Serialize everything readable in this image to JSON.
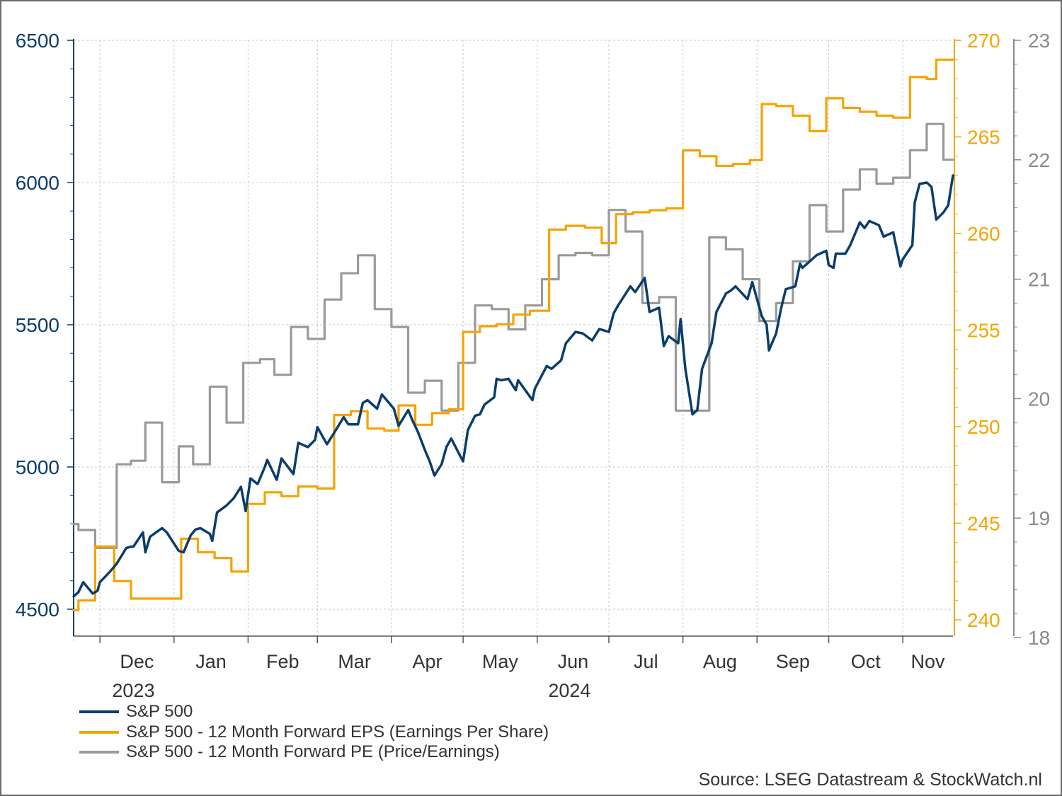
{
  "chart_data": {
    "type": "line",
    "title": "",
    "source": "Source: LSEG Datastream & StockWatch.nl",
    "x_range": [
      "2023-11-20",
      "2024-11-22"
    ],
    "x_month_labels": [
      "Dec",
      "Jan",
      "Feb",
      "Mar",
      "Apr",
      "May",
      "Jun",
      "Jul",
      "Aug",
      "Sep",
      "Oct",
      "Nov"
    ],
    "x_year_labels": [
      {
        "label": "2023",
        "month": "Dec"
      },
      {
        "label": "2024",
        "month": "Jun"
      }
    ],
    "axes": {
      "left": {
        "min": 4400,
        "max": 6500,
        "ticks": [
          4500,
          5000,
          5500,
          6000,
          6500
        ],
        "color": "#0b3d6b"
      },
      "right_eps": {
        "min": 239,
        "max": 270,
        "ticks": [
          240,
          245,
          250,
          255,
          260,
          265,
          270
        ],
        "color": "#f5a300"
      },
      "right_pe": {
        "min": 18,
        "max": 23,
        "ticks": [
          18,
          19,
          20,
          21,
          22,
          23
        ],
        "color": "#8a8a8a"
      }
    },
    "grid": true,
    "legend_position": "bottom-left",
    "series": [
      {
        "name": "S&P 500",
        "axis": "left",
        "color": "#0b3d6b",
        "points": [
          [
            "2023-11-20",
            4545
          ],
          [
            "2023-11-22",
            4560
          ],
          [
            "2023-11-24",
            4595
          ],
          [
            "2023-11-28",
            4555
          ],
          [
            "2023-11-30",
            4565
          ],
          [
            "2023-12-01",
            4595
          ],
          [
            "2023-12-05",
            4630
          ],
          [
            "2023-12-08",
            4660
          ],
          [
            "2023-12-12",
            4715
          ],
          [
            "2023-12-14",
            4720
          ],
          [
            "2023-12-15",
            4720
          ],
          [
            "2023-12-19",
            4770
          ],
          [
            "2023-12-20",
            4700
          ],
          [
            "2023-12-22",
            4755
          ],
          [
            "2023-12-27",
            4785
          ],
          [
            "2023-12-29",
            4770
          ],
          [
            "2024-01-03",
            4705
          ],
          [
            "2024-01-05",
            4700
          ],
          [
            "2024-01-08",
            4760
          ],
          [
            "2024-01-10",
            4780
          ],
          [
            "2024-01-12",
            4785
          ],
          [
            "2024-01-16",
            4765
          ],
          [
            "2024-01-17",
            4740
          ],
          [
            "2024-01-19",
            4840
          ],
          [
            "2024-01-23",
            4865
          ],
          [
            "2024-01-26",
            4890
          ],
          [
            "2024-01-29",
            4930
          ],
          [
            "2024-01-31",
            4845
          ],
          [
            "2024-02-02",
            4960
          ],
          [
            "2024-02-05",
            4940
          ],
          [
            "2024-02-08",
            5000
          ],
          [
            "2024-02-09",
            5025
          ],
          [
            "2024-02-13",
            4955
          ],
          [
            "2024-02-15",
            5030
          ],
          [
            "2024-02-20",
            4975
          ],
          [
            "2024-02-22",
            5085
          ],
          [
            "2024-02-26",
            5070
          ],
          [
            "2024-02-29",
            5095
          ],
          [
            "2024-03-01",
            5140
          ],
          [
            "2024-03-05",
            5080
          ],
          [
            "2024-03-08",
            5120
          ],
          [
            "2024-03-12",
            5175
          ],
          [
            "2024-03-14",
            5150
          ],
          [
            "2024-03-18",
            5150
          ],
          [
            "2024-03-20",
            5225
          ],
          [
            "2024-03-22",
            5235
          ],
          [
            "2024-03-26",
            5205
          ],
          [
            "2024-03-28",
            5255
          ],
          [
            "2024-04-02",
            5205
          ],
          [
            "2024-04-04",
            5145
          ],
          [
            "2024-04-08",
            5200
          ],
          [
            "2024-04-10",
            5160
          ],
          [
            "2024-04-12",
            5125
          ],
          [
            "2024-04-15",
            5060
          ],
          [
            "2024-04-17",
            5020
          ],
          [
            "2024-04-19",
            4970
          ],
          [
            "2024-04-22",
            5010
          ],
          [
            "2024-04-24",
            5070
          ],
          [
            "2024-04-26",
            5100
          ],
          [
            "2024-04-30",
            5035
          ],
          [
            "2024-05-01",
            5020
          ],
          [
            "2024-05-03",
            5130
          ],
          [
            "2024-05-06",
            5180
          ],
          [
            "2024-05-08",
            5185
          ],
          [
            "2024-05-10",
            5220
          ],
          [
            "2024-05-14",
            5245
          ],
          [
            "2024-05-15",
            5310
          ],
          [
            "2024-05-17",
            5305
          ],
          [
            "2024-05-20",
            5310
          ],
          [
            "2024-05-23",
            5270
          ],
          [
            "2024-05-24",
            5305
          ],
          [
            "2024-05-30",
            5235
          ],
          [
            "2024-05-31",
            5275
          ],
          [
            "2024-06-05",
            5355
          ],
          [
            "2024-06-07",
            5345
          ],
          [
            "2024-06-11",
            5375
          ],
          [
            "2024-06-13",
            5435
          ],
          [
            "2024-06-17",
            5475
          ],
          [
            "2024-06-20",
            5470
          ],
          [
            "2024-06-24",
            5445
          ],
          [
            "2024-06-27",
            5485
          ],
          [
            "2024-07-01",
            5475
          ],
          [
            "2024-07-03",
            5540
          ],
          [
            "2024-07-05",
            5570
          ],
          [
            "2024-07-10",
            5635
          ],
          [
            "2024-07-12",
            5615
          ],
          [
            "2024-07-16",
            5665
          ],
          [
            "2024-07-18",
            5545
          ],
          [
            "2024-07-22",
            5560
          ],
          [
            "2024-07-24",
            5425
          ],
          [
            "2024-07-26",
            5460
          ],
          [
            "2024-07-30",
            5435
          ],
          [
            "2024-07-31",
            5520
          ],
          [
            "2024-08-02",
            5345
          ],
          [
            "2024-08-05",
            5185
          ],
          [
            "2024-08-07",
            5200
          ],
          [
            "2024-08-09",
            5345
          ],
          [
            "2024-08-13",
            5435
          ],
          [
            "2024-08-15",
            5545
          ],
          [
            "2024-08-19",
            5610
          ],
          [
            "2024-08-21",
            5620
          ],
          [
            "2024-08-23",
            5635
          ],
          [
            "2024-08-28",
            5590
          ],
          [
            "2024-08-30",
            5650
          ],
          [
            "2024-09-03",
            5530
          ],
          [
            "2024-09-05",
            5500
          ],
          [
            "2024-09-06",
            5410
          ],
          [
            "2024-09-09",
            5470
          ],
          [
            "2024-09-11",
            5555
          ],
          [
            "2024-09-13",
            5625
          ],
          [
            "2024-09-17",
            5635
          ],
          [
            "2024-09-19",
            5715
          ],
          [
            "2024-09-20",
            5700
          ],
          [
            "2024-09-24",
            5730
          ],
          [
            "2024-09-26",
            5745
          ],
          [
            "2024-09-30",
            5760
          ],
          [
            "2024-10-01",
            5710
          ],
          [
            "2024-10-03",
            5700
          ],
          [
            "2024-10-04",
            5750
          ],
          [
            "2024-10-08",
            5750
          ],
          [
            "2024-10-10",
            5780
          ],
          [
            "2024-10-14",
            5860
          ],
          [
            "2024-10-16",
            5840
          ],
          [
            "2024-10-18",
            5865
          ],
          [
            "2024-10-22",
            5850
          ],
          [
            "2024-10-24",
            5810
          ],
          [
            "2024-10-28",
            5825
          ],
          [
            "2024-10-31",
            5705
          ],
          [
            "2024-11-01",
            5730
          ],
          [
            "2024-11-05",
            5780
          ],
          [
            "2024-11-06",
            5930
          ],
          [
            "2024-11-08",
            5995
          ],
          [
            "2024-11-11",
            6000
          ],
          [
            "2024-11-13",
            5985
          ],
          [
            "2024-11-15",
            5870
          ],
          [
            "2024-11-18",
            5895
          ],
          [
            "2024-11-20",
            5920
          ],
          [
            "2024-11-22",
            6025
          ]
        ]
      },
      {
        "name": "S&P 500 - 12 Month Forward EPS (Earnings Per Share)",
        "axis": "right_eps",
        "color": "#f5a300",
        "step": true,
        "points": [
          [
            "2023-11-20",
            240.5
          ],
          [
            "2023-11-22",
            241.0
          ],
          [
            "2023-11-29",
            243.8
          ],
          [
            "2023-12-07",
            242.0
          ],
          [
            "2023-12-14",
            241.1
          ],
          [
            "2024-01-04",
            244.2
          ],
          [
            "2024-01-11",
            243.5
          ],
          [
            "2024-01-18",
            243.2
          ],
          [
            "2024-01-25",
            242.5
          ],
          [
            "2024-02-01",
            246.0
          ],
          [
            "2024-02-08",
            246.6
          ],
          [
            "2024-02-15",
            246.4
          ],
          [
            "2024-02-22",
            246.9
          ],
          [
            "2024-03-01",
            246.8
          ],
          [
            "2024-03-08",
            250.6
          ],
          [
            "2024-03-15",
            250.8
          ],
          [
            "2024-03-22",
            249.9
          ],
          [
            "2024-03-29",
            249.8
          ],
          [
            "2024-04-04",
            251.1
          ],
          [
            "2024-04-11",
            250.1
          ],
          [
            "2024-04-18",
            250.7
          ],
          [
            "2024-04-25",
            250.9
          ],
          [
            "2024-05-01",
            254.9
          ],
          [
            "2024-05-08",
            255.2
          ],
          [
            "2024-05-15",
            255.3
          ],
          [
            "2024-05-22",
            255.8
          ],
          [
            "2024-05-29",
            256.0
          ],
          [
            "2024-06-06",
            260.2
          ],
          [
            "2024-06-13",
            260.4
          ],
          [
            "2024-06-21",
            260.3
          ],
          [
            "2024-06-28",
            259.5
          ],
          [
            "2024-07-04",
            261.0
          ],
          [
            "2024-07-11",
            261.1
          ],
          [
            "2024-07-18",
            261.2
          ],
          [
            "2024-07-25",
            261.3
          ],
          [
            "2024-08-01",
            264.3
          ],
          [
            "2024-08-08",
            264.0
          ],
          [
            "2024-08-15",
            263.5
          ],
          [
            "2024-08-22",
            263.6
          ],
          [
            "2024-08-29",
            263.8
          ],
          [
            "2024-09-03",
            266.7
          ],
          [
            "2024-09-09",
            266.6
          ],
          [
            "2024-09-16",
            266.1
          ],
          [
            "2024-09-23",
            265.3
          ],
          [
            "2024-09-30",
            267.0
          ],
          [
            "2024-10-07",
            266.5
          ],
          [
            "2024-10-14",
            266.3
          ],
          [
            "2024-10-21",
            266.1
          ],
          [
            "2024-10-28",
            266.0
          ],
          [
            "2024-11-04",
            268.1
          ],
          [
            "2024-11-11",
            268.0
          ],
          [
            "2024-11-15",
            269.0
          ],
          [
            "2024-11-22",
            269.0
          ]
        ]
      },
      {
        "name": "S&P 500 - 12 Month Forward PE (Price/Earnings)",
        "axis": "right_pe",
        "color": "#9a9a9a",
        "step": true,
        "points": [
          [
            "2023-11-20",
            18.95
          ],
          [
            "2023-11-22",
            18.9
          ],
          [
            "2023-11-29",
            18.75
          ],
          [
            "2023-12-06",
            18.75
          ],
          [
            "2023-12-08",
            19.45
          ],
          [
            "2023-12-14",
            19.48
          ],
          [
            "2023-12-20",
            19.8
          ],
          [
            "2023-12-27",
            19.3
          ],
          [
            "2024-01-03",
            19.6
          ],
          [
            "2024-01-09",
            19.45
          ],
          [
            "2024-01-16",
            20.1
          ],
          [
            "2024-01-23",
            19.8
          ],
          [
            "2024-01-30",
            20.3
          ],
          [
            "2024-02-06",
            20.33
          ],
          [
            "2024-02-12",
            20.2
          ],
          [
            "2024-02-19",
            20.6
          ],
          [
            "2024-02-26",
            20.5
          ],
          [
            "2024-03-04",
            20.83
          ],
          [
            "2024-03-11",
            21.05
          ],
          [
            "2024-03-18",
            21.2
          ],
          [
            "2024-03-25",
            20.75
          ],
          [
            "2024-04-01",
            20.6
          ],
          [
            "2024-04-08",
            20.05
          ],
          [
            "2024-04-15",
            20.15
          ],
          [
            "2024-04-22",
            19.9
          ],
          [
            "2024-04-29",
            20.3
          ],
          [
            "2024-05-06",
            20.78
          ],
          [
            "2024-05-13",
            20.75
          ],
          [
            "2024-05-20",
            20.58
          ],
          [
            "2024-05-27",
            20.78
          ],
          [
            "2024-06-03",
            21.0
          ],
          [
            "2024-06-10",
            21.2
          ],
          [
            "2024-06-17",
            21.22
          ],
          [
            "2024-06-24",
            21.2
          ],
          [
            "2024-07-01",
            21.58
          ],
          [
            "2024-07-08",
            21.4
          ],
          [
            "2024-07-15",
            20.8
          ],
          [
            "2024-07-22",
            20.85
          ],
          [
            "2024-07-29",
            19.9
          ],
          [
            "2024-08-05",
            19.9
          ],
          [
            "2024-08-12",
            21.35
          ],
          [
            "2024-08-19",
            21.25
          ],
          [
            "2024-08-26",
            21.0
          ],
          [
            "2024-09-02",
            20.65
          ],
          [
            "2024-09-09",
            20.8
          ],
          [
            "2024-09-16",
            21.15
          ],
          [
            "2024-09-23",
            21.62
          ],
          [
            "2024-09-30",
            21.4
          ],
          [
            "2024-10-07",
            21.75
          ],
          [
            "2024-10-14",
            21.92
          ],
          [
            "2024-10-21",
            21.8
          ],
          [
            "2024-10-28",
            21.85
          ],
          [
            "2024-11-04",
            22.08
          ],
          [
            "2024-11-11",
            22.3
          ],
          [
            "2024-11-18",
            22.0
          ],
          [
            "2024-11-22",
            22.0
          ]
        ]
      }
    ],
    "legend": [
      {
        "label": "S&P 500",
        "color": "#0b3d6b"
      },
      {
        "label": "S&P 500 - 12 Month Forward EPS (Earnings Per Share)",
        "color": "#f5a300"
      },
      {
        "label": "S&P 500 - 12 Month Forward PE (Price/Earnings)",
        "color": "#9a9a9a"
      }
    ]
  }
}
